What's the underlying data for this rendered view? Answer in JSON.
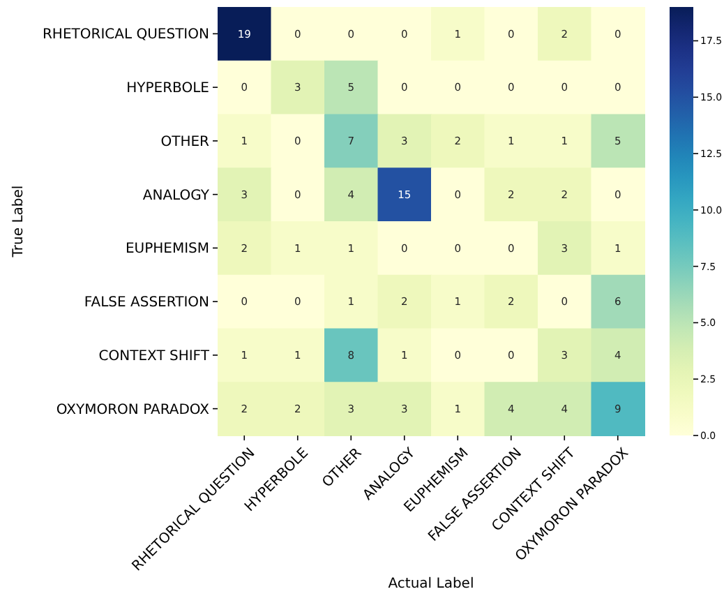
{
  "chart_data": {
    "type": "heatmap",
    "xlabel": "Actual Label",
    "ylabel": "True Label",
    "categories": [
      "RHETORICAL QUESTION",
      "HYPERBOLE",
      "OTHER",
      "ANALOGY",
      "EUPHEMISM",
      "FALSE ASSERTION",
      "CONTEXT SHIFT",
      "OXYMORON PARADOX"
    ],
    "y_categories": [
      "RHETORICAL QUESTION",
      "HYPERBOLE",
      "OTHER",
      "ANALOGY",
      "EUPHEMISM",
      "FALSE ASSERTION",
      "CONTEXT SHIFT",
      "OXYMORON PARADOX"
    ],
    "cells": [
      [
        19,
        0,
        0,
        0,
        1,
        0,
        2,
        0
      ],
      [
        0,
        3,
        5,
        0,
        0,
        0,
        0,
        0
      ],
      [
        1,
        0,
        7,
        3,
        2,
        1,
        1,
        5
      ],
      [
        3,
        0,
        4,
        15,
        0,
        2,
        2,
        0
      ],
      [
        2,
        1,
        1,
        0,
        0,
        0,
        3,
        1
      ],
      [
        0,
        0,
        1,
        2,
        1,
        2,
        0,
        6
      ],
      [
        1,
        1,
        8,
        1,
        0,
        0,
        3,
        4
      ],
      [
        2,
        2,
        3,
        3,
        1,
        4,
        4,
        9
      ]
    ],
    "data_labels": true,
    "clim": [
      0,
      19
    ],
    "cticks": [
      {
        "value": 0,
        "label": "0.0"
      },
      {
        "value": 2.5,
        "label": "2.5"
      },
      {
        "value": 5,
        "label": "5.0"
      },
      {
        "value": 7.5,
        "label": "7.5"
      },
      {
        "value": 10,
        "label": "10.0"
      },
      {
        "value": 12.5,
        "label": "12.5"
      },
      {
        "value": 15,
        "label": "15.0"
      },
      {
        "value": 17.5,
        "label": "17.5"
      }
    ]
  }
}
